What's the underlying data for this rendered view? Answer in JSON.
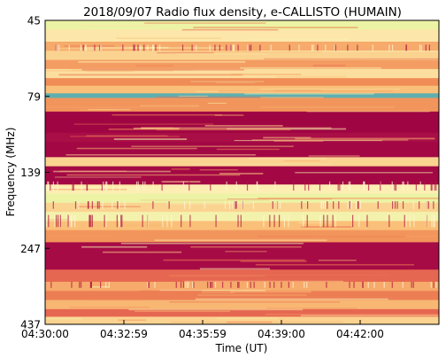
{
  "chart_data": {
    "type": "heatmap",
    "title": "2018/09/07  Radio flux density, e-CALLISTO (HUMAIN)",
    "xlabel": "Time (UT)",
    "ylabel": "Frequency (MHz)",
    "x_ticks": [
      "04:30:00",
      "04:32:59",
      "04:35:59",
      "04:39:00",
      "04:42:00"
    ],
    "y_ticks": [
      "45",
      "79",
      "139",
      "247",
      "437"
    ],
    "colormap": [
      "#9a0041",
      "#c0224f",
      "#e0504f",
      "#f08a55",
      "#fac079",
      "#fdf0b5",
      "#e6f4a0",
      "#8fd4a4",
      "#3f96b8"
    ],
    "bands": [
      {
        "start": 0.0,
        "end": 0.03,
        "level": 0.72
      },
      {
        "start": 0.03,
        "end": 0.07,
        "level": 0.6
      },
      {
        "start": 0.07,
        "end": 0.1,
        "level": 0.45
      },
      {
        "start": 0.1,
        "end": 0.13,
        "level": 0.55
      },
      {
        "start": 0.13,
        "end": 0.16,
        "level": 0.42
      },
      {
        "start": 0.16,
        "end": 0.19,
        "level": 0.58
      },
      {
        "start": 0.19,
        "end": 0.215,
        "level": 0.38
      },
      {
        "start": 0.215,
        "end": 0.24,
        "level": 0.5
      },
      {
        "start": 0.24,
        "end": 0.255,
        "level": 0.95
      },
      {
        "start": 0.255,
        "end": 0.3,
        "level": 0.4
      },
      {
        "start": 0.3,
        "end": 0.37,
        "level": 0.02
      },
      {
        "start": 0.37,
        "end": 0.4,
        "level": 0.05
      },
      {
        "start": 0.4,
        "end": 0.45,
        "level": 0.03
      },
      {
        "start": 0.45,
        "end": 0.48,
        "level": 0.55
      },
      {
        "start": 0.48,
        "end": 0.54,
        "level": 0.03
      },
      {
        "start": 0.54,
        "end": 0.57,
        "level": 0.62
      },
      {
        "start": 0.57,
        "end": 0.6,
        "level": 0.72
      },
      {
        "start": 0.6,
        "end": 0.63,
        "level": 0.55
      },
      {
        "start": 0.63,
        "end": 0.66,
        "level": 0.68
      },
      {
        "start": 0.66,
        "end": 0.69,
        "level": 0.5
      },
      {
        "start": 0.69,
        "end": 0.73,
        "level": 0.4
      },
      {
        "start": 0.73,
        "end": 0.82,
        "level": 0.04
      },
      {
        "start": 0.82,
        "end": 0.86,
        "level": 0.3
      },
      {
        "start": 0.86,
        "end": 0.89,
        "level": 0.45
      },
      {
        "start": 0.89,
        "end": 0.92,
        "level": 0.35
      },
      {
        "start": 0.92,
        "end": 0.95,
        "level": 0.48
      },
      {
        "start": 0.95,
        "end": 0.975,
        "level": 0.3
      },
      {
        "start": 0.975,
        "end": 1.0,
        "level": 0.55
      }
    ]
  }
}
